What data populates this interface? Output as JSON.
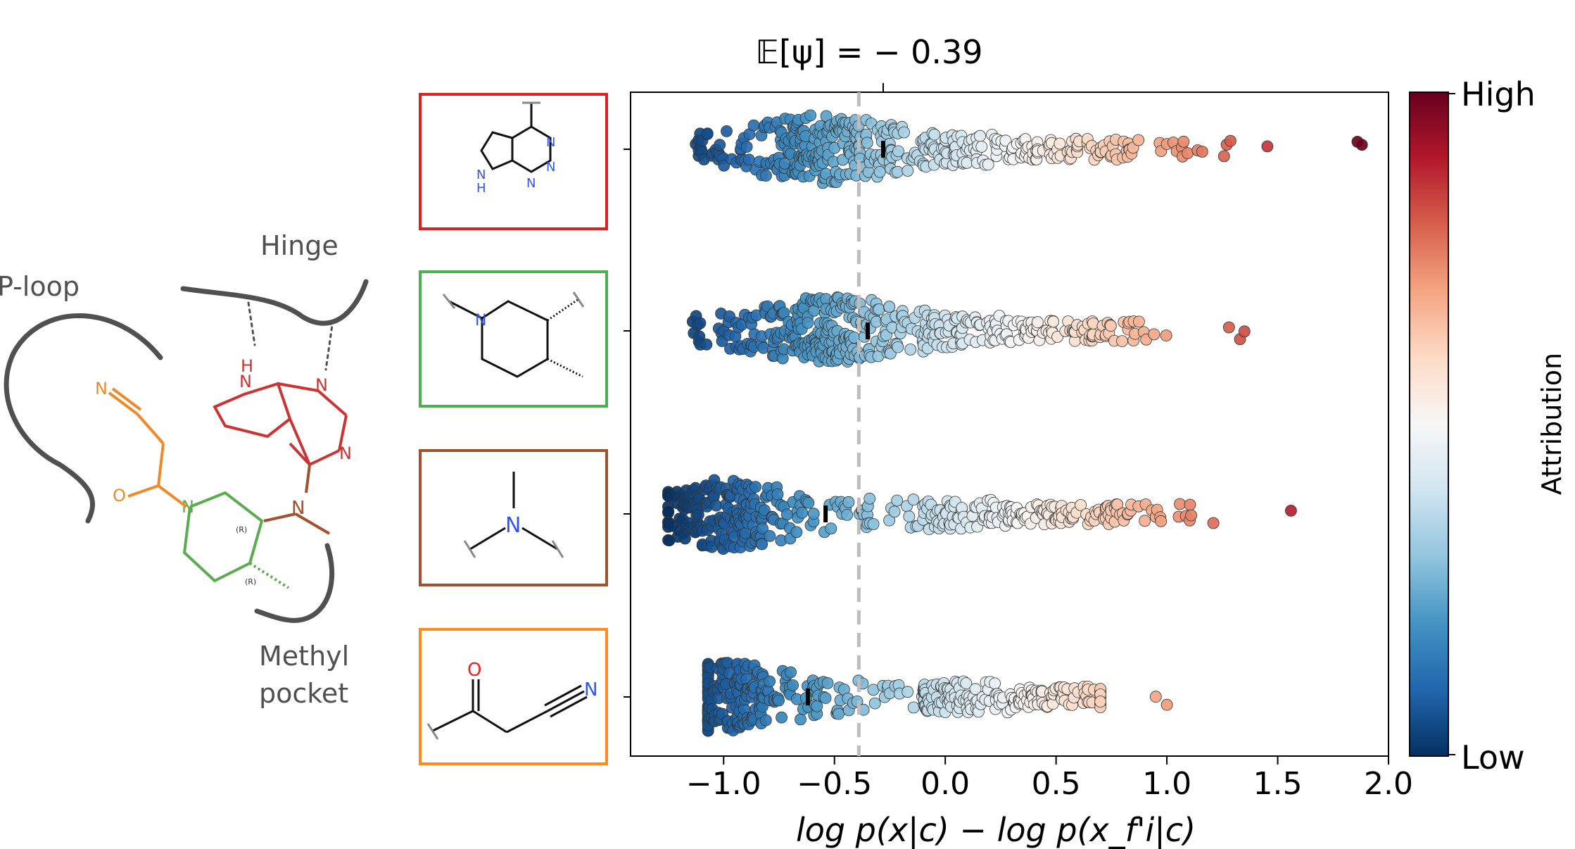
{
  "molecule": {
    "labels": {
      "p_loop": "P-loop",
      "hinge": "Hinge",
      "methyl_pocket_line1": "Methyl",
      "methyl_pocket_line2": "pocket"
    },
    "atoms": {
      "N": "N",
      "H": "H",
      "O": "O",
      "R": "(R)"
    },
    "colors": {
      "pocket": "#505050",
      "hinge_binder": "#cc3333",
      "piperidine": "#5aac4e",
      "amine": "#a0522d",
      "cyanoacetyl": "#ee8a2a"
    }
  },
  "fragments": [
    {
      "name": "pyrrolopyrimidine",
      "box_color": "#e02020"
    },
    {
      "name": "dimethylpiperidine",
      "box_color": "#4caf50"
    },
    {
      "name": "methylamine-linker",
      "box_color": "#a0522d"
    },
    {
      "name": "cyanoacetyl",
      "box_color": "#ff8c1a"
    }
  ],
  "chart_data": {
    "type": "scatter",
    "title": "𝔼[ψ] = − 0.39",
    "expected_value": -0.39,
    "xlabel": "log p(x|c) − log p(x_f'i|c)",
    "xlim": [
      -1.42,
      2.0
    ],
    "xticks": [
      -1.0,
      -0.5,
      0.0,
      0.5,
      1.0,
      1.5,
      2.0
    ],
    "xtick_labels": [
      "−1.0",
      "−0.5",
      "0.0",
      "0.5",
      "1.0",
      "1.5",
      "2.0"
    ],
    "rows": [
      {
        "fragment": "pyrrolopyrimidine",
        "mean": -0.28,
        "min": -1.2,
        "max": 1.88,
        "mode": -0.55,
        "extremes": [
          1.27,
          1.86,
          1.88
        ]
      },
      {
        "fragment": "dimethylpiperidine",
        "mean": -0.35,
        "min": -1.2,
        "max": 1.35,
        "mode": -0.5,
        "extremes": [
          1.28,
          1.33,
          1.35
        ]
      },
      {
        "fragment": "methylamine-linker",
        "mean": -0.54,
        "min": -1.25,
        "max": 1.56,
        "mode": -1.0,
        "extremes": [
          0.95,
          1.56
        ]
      },
      {
        "fragment": "cyanoacetyl",
        "mean": -0.62,
        "min": -1.07,
        "max": 1.0,
        "mode": -1.0,
        "extremes": [
          0.95,
          1.0
        ]
      }
    ],
    "colorbar": {
      "label": "Attribution",
      "high_label": "High",
      "low_label": "Low",
      "colormap": "RdBu_r",
      "stops": [
        "#053061",
        "#2166ac",
        "#4393c3",
        "#92c5de",
        "#d1e5f0",
        "#f7f7f7",
        "#fddbc7",
        "#f4a582",
        "#d6604d",
        "#b2182b",
        "#67001f"
      ]
    }
  }
}
